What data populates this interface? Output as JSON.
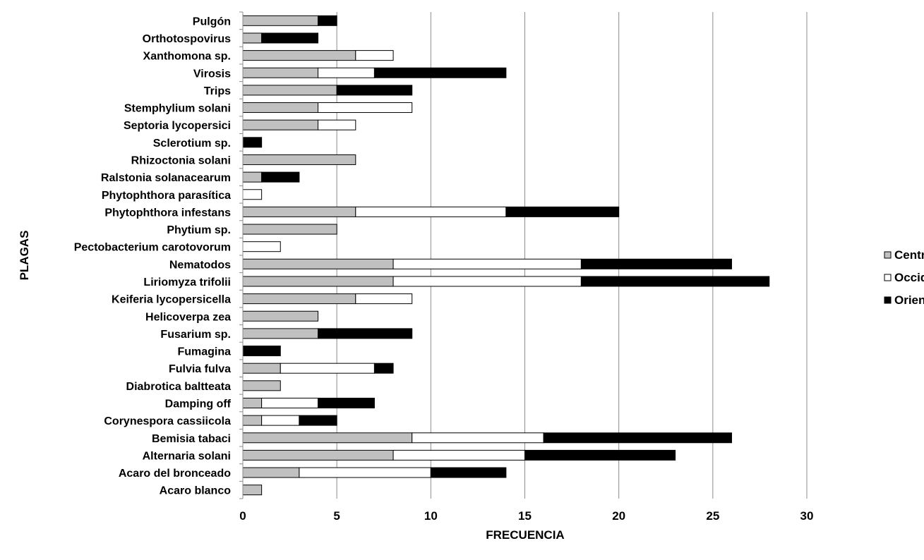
{
  "chart_data": {
    "type": "bar",
    "orientation": "horizontal",
    "stacked": true,
    "title": "",
    "xlabel": "FRECUENCIA",
    "ylabel": "PLAGAS",
    "xlim": [
      0,
      30
    ],
    "xticks": [
      0,
      5,
      10,
      15,
      20,
      25,
      30
    ],
    "grid": "vertical",
    "legend_position": "right",
    "categories": [
      "Pulgón",
      "Orthotospovirus",
      "Xanthomona sp.",
      "Virosis",
      "Trips",
      "Stemphylium solani",
      "Septoria lycopersici",
      "Sclerotium sp.",
      "Rhizoctonia solani",
      "Ralstonia solanacearum",
      "Phytophthora parasítica",
      "Phytophthora infestans",
      "Phytium sp.",
      "Pectobacterium carotovorum",
      "Nematodos",
      "Liriomyza trifolii",
      "Keiferia lycopersicella",
      "Helicoverpa zea",
      "Fusarium sp.",
      "Fumagina",
      "Fulvia fulva",
      "Diabrotica baltteata",
      "Damping off",
      "Corynespora cassiicola",
      "Bemisia tabaci",
      "Alternaria solani",
      "Acaro del bronceado",
      "Acaro blanco"
    ],
    "series": [
      {
        "name": "Centro",
        "color": "#c0c0c0",
        "values": [
          4,
          1,
          6,
          4,
          5,
          4,
          4,
          0,
          6,
          1,
          0,
          6,
          5,
          0,
          8,
          8,
          6,
          4,
          4,
          0,
          2,
          2,
          1,
          1,
          9,
          8,
          3,
          1
        ]
      },
      {
        "name": "Occidente",
        "color": "#ffffff",
        "values": [
          0,
          0,
          2,
          3,
          0,
          5,
          2,
          0,
          0,
          0,
          1,
          8,
          0,
          2,
          10,
          10,
          3,
          0,
          0,
          0,
          5,
          0,
          3,
          2,
          7,
          7,
          7,
          0
        ]
      },
      {
        "name": "Oriente",
        "color": "#000000",
        "values": [
          1,
          3,
          0,
          7,
          4,
          0,
          0,
          1,
          0,
          2,
          0,
          6,
          0,
          0,
          8,
          10,
          0,
          0,
          5,
          2,
          1,
          0,
          3,
          2,
          10,
          8,
          4,
          0
        ]
      }
    ]
  }
}
